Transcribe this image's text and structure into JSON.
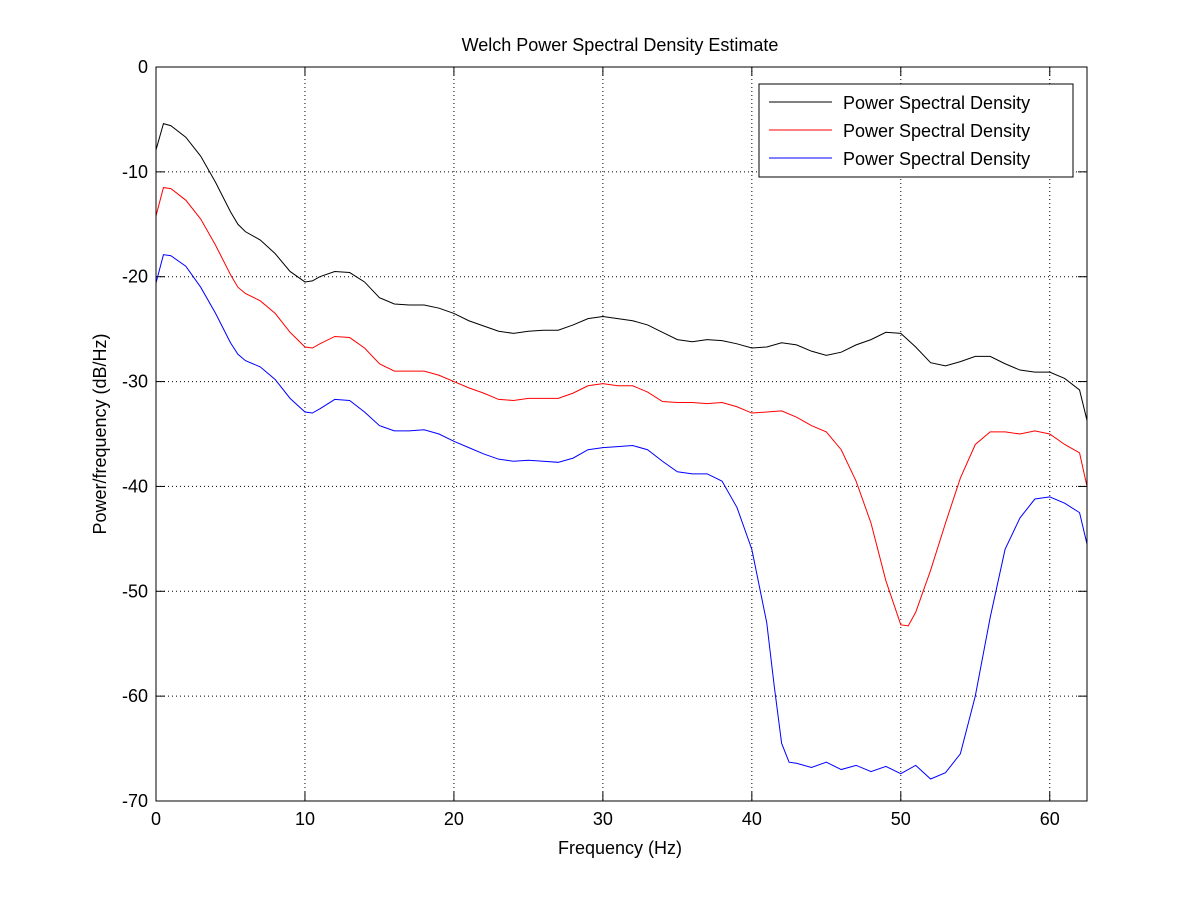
{
  "chart_data": {
    "type": "line",
    "title": "Welch Power Spectral Density Estimate",
    "xlabel": "Frequency (Hz)",
    "ylabel": "Power/frequency (dB/Hz)",
    "xlim": [
      0,
      62.5
    ],
    "xticks": [
      0,
      10,
      20,
      30,
      40,
      50,
      60
    ],
    "ylim": [
      -70,
      0
    ],
    "yticks": [
      -70,
      -60,
      -50,
      -40,
      -30,
      -20,
      -10,
      0
    ],
    "grid": true,
    "legend": "upper right",
    "series": [
      {
        "name": "Power Spectral Density",
        "color": "#000000",
        "x": [
          0,
          0.5,
          1,
          2,
          3,
          4,
          5,
          5.5,
          6,
          7,
          8,
          9,
          10,
          10.5,
          11,
          12,
          13,
          14,
          15,
          16,
          17,
          18,
          19,
          20,
          21,
          22,
          23,
          24,
          25,
          26,
          27,
          28,
          29,
          30,
          31,
          32,
          33,
          34,
          35,
          36,
          37,
          38,
          39,
          40,
          41,
          42,
          43,
          44,
          45,
          46,
          47,
          48,
          49,
          50,
          51,
          52,
          53,
          54,
          55,
          56,
          57,
          58,
          59,
          60,
          61,
          62,
          62.5
        ],
        "values": [
          -7.9,
          -5.4,
          -5.6,
          -6.7,
          -8.5,
          -11,
          -13.8,
          -15,
          -15.7,
          -16.5,
          -17.8,
          -19.5,
          -20.5,
          -20.4,
          -20,
          -19.5,
          -19.6,
          -20.5,
          -22,
          -22.6,
          -22.7,
          -22.7,
          -23,
          -23.5,
          -24.2,
          -24.7,
          -25.2,
          -25.4,
          -25.2,
          -25.1,
          -25.1,
          -24.6,
          -24,
          -23.8,
          -24,
          -24.2,
          -24.6,
          -25.3,
          -26,
          -26.2,
          -26,
          -26.1,
          -26.4,
          -26.8,
          -26.7,
          -26.3,
          -26.5,
          -27.1,
          -27.5,
          -27.2,
          -26.5,
          -26,
          -25.3,
          -25.4,
          -26.7,
          -28.2,
          -28.5,
          -28.1,
          -27.6,
          -27.6,
          -28.3,
          -28.9,
          -29.1,
          -29.1,
          -29.7,
          -30.8,
          -33.7
        ]
      },
      {
        "name": "Power Spectral Density",
        "color": "#ff0000",
        "x": [
          0,
          0.5,
          1,
          2,
          3,
          4,
          5,
          5.5,
          6,
          7,
          8,
          9,
          10,
          10.5,
          11,
          12,
          13,
          14,
          15,
          16,
          17,
          18,
          19,
          20,
          21,
          22,
          23,
          24,
          25,
          26,
          27,
          28,
          29,
          30,
          31,
          32,
          33,
          34,
          35,
          36,
          37,
          38,
          39,
          40,
          41,
          42,
          43,
          44,
          45,
          46,
          47,
          48,
          49,
          50,
          50.5,
          51,
          52,
          53,
          54,
          55,
          56,
          57,
          58,
          59,
          60,
          61,
          62,
          62.5
        ],
        "values": [
          -14.2,
          -11.5,
          -11.6,
          -12.7,
          -14.5,
          -17,
          -19.8,
          -21,
          -21.6,
          -22.3,
          -23.5,
          -25.3,
          -26.7,
          -26.8,
          -26.4,
          -25.7,
          -25.8,
          -26.8,
          -28.3,
          -29,
          -29,
          -29,
          -29.4,
          -30,
          -30.6,
          -31.1,
          -31.7,
          -31.8,
          -31.6,
          -31.6,
          -31.6,
          -31.1,
          -30.4,
          -30.2,
          -30.4,
          -30.4,
          -31,
          -31.9,
          -32,
          -32,
          -32.1,
          -32,
          -32.4,
          -33,
          -32.9,
          -32.8,
          -33.4,
          -34.2,
          -34.8,
          -36.5,
          -39.5,
          -43.5,
          -49,
          -53.2,
          -53.3,
          -52,
          -48,
          -43.5,
          -39.2,
          -36,
          -34.8,
          -34.8,
          -35,
          -34.7,
          -35,
          -36,
          -36.8,
          -40
        ]
      },
      {
        "name": "Power Spectral Density",
        "color": "#0000ff",
        "x": [
          0,
          0.5,
          1,
          2,
          3,
          4,
          5,
          5.5,
          6,
          7,
          8,
          9,
          10,
          10.5,
          11,
          12,
          13,
          14,
          15,
          16,
          17,
          18,
          19,
          20,
          21,
          22,
          23,
          24,
          25,
          26,
          27,
          28,
          29,
          30,
          31,
          32,
          33,
          34,
          35,
          36,
          37,
          38,
          39,
          40,
          41,
          41.5,
          42,
          42.5,
          43,
          44,
          45,
          46,
          47,
          48,
          49,
          50,
          51,
          52,
          53,
          54,
          55,
          56,
          57,
          58,
          59,
          60,
          61,
          62,
          62.5
        ],
        "values": [
          -20.6,
          -17.9,
          -18,
          -19,
          -21,
          -23.5,
          -26.3,
          -27.4,
          -28,
          -28.6,
          -29.8,
          -31.6,
          -32.9,
          -33,
          -32.6,
          -31.7,
          -31.8,
          -32.9,
          -34.2,
          -34.7,
          -34.7,
          -34.6,
          -35,
          -35.7,
          -36.3,
          -36.9,
          -37.4,
          -37.6,
          -37.5,
          -37.6,
          -37.7,
          -37.3,
          -36.5,
          -36.3,
          -36.2,
          -36.1,
          -36.5,
          -37.6,
          -38.6,
          -38.8,
          -38.8,
          -39.5,
          -42,
          -46,
          -53,
          -59,
          -64.5,
          -66.3,
          -66.4,
          -66.8,
          -66.3,
          -67,
          -66.6,
          -67.2,
          -66.7,
          -67.4,
          -66.6,
          -67.9,
          -67.3,
          -65.5,
          -60,
          -52.5,
          -46,
          -43,
          -41.2,
          -41,
          -41.6,
          -42.5,
          -45.5
        ]
      }
    ]
  }
}
